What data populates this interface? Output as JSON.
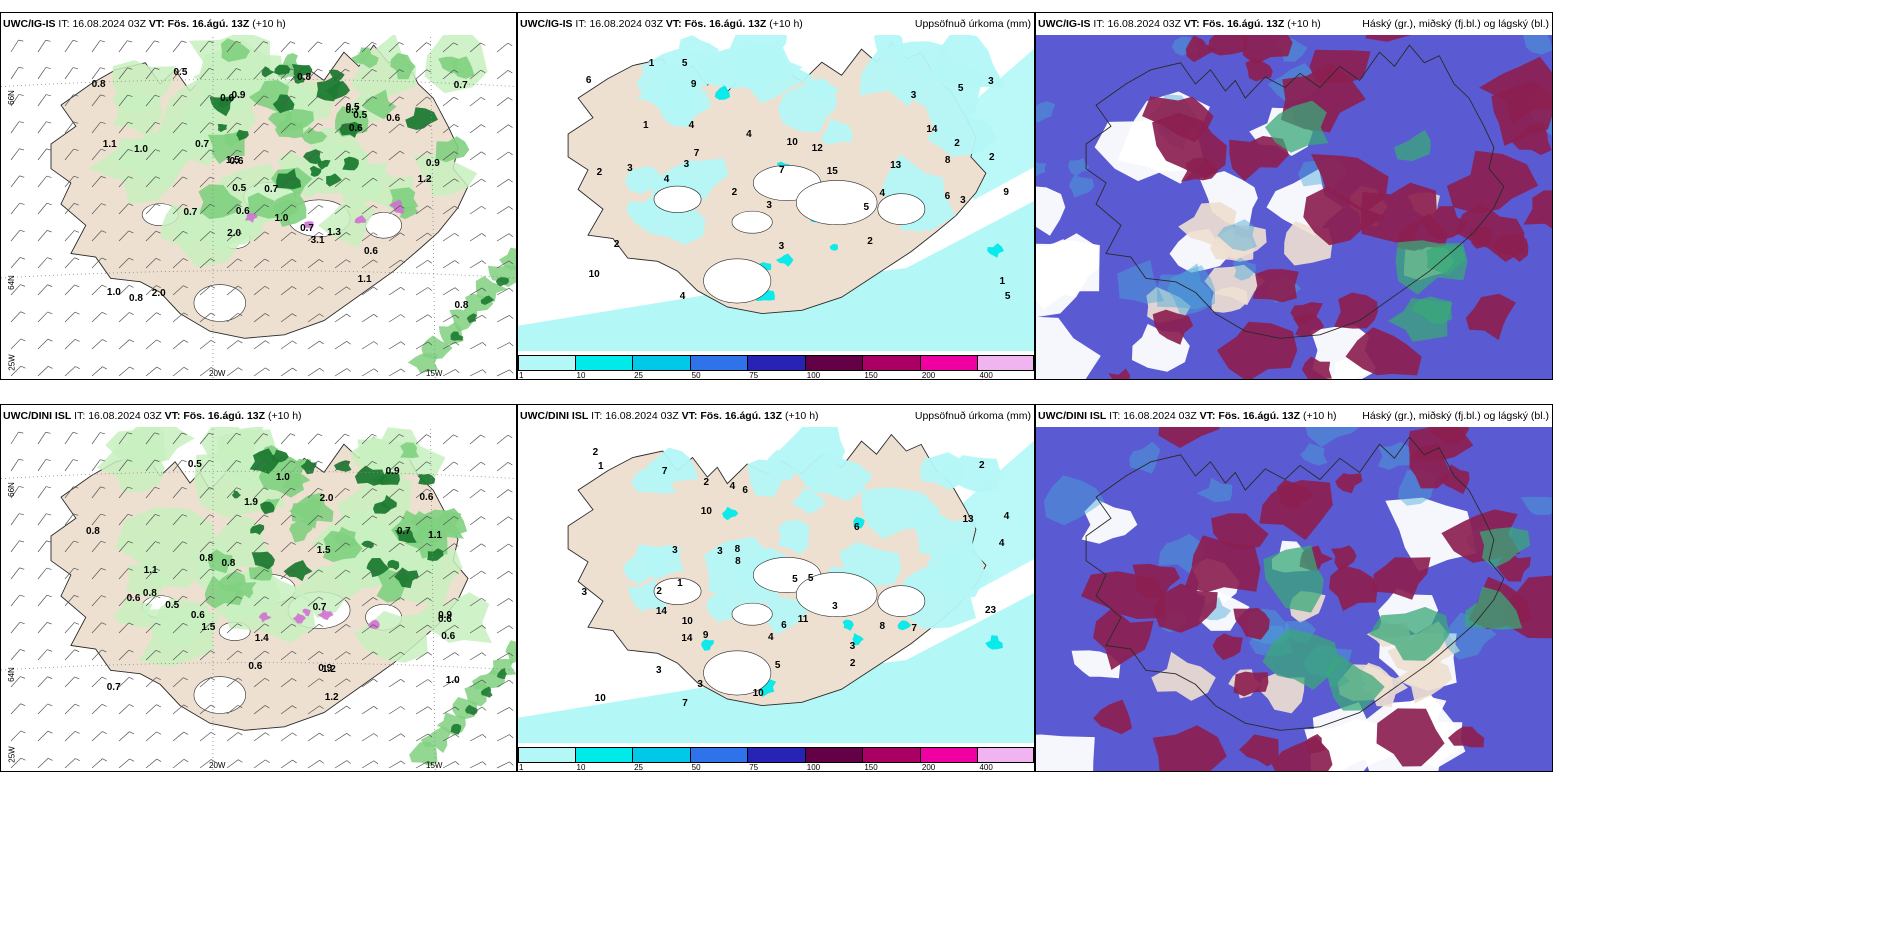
{
  "panels": [
    {
      "left_title": {
        "model": "UWC/IG-IS",
        "it_label": "IT:",
        "it": "16.08.2024 03Z",
        "vt_label": "VT:",
        "vt": "Fös. 16.ágú. 13Z",
        "lead": "(+10 h)"
      },
      "right_title": "",
      "kind": "wind",
      "labels": [
        "0.6",
        "0.7",
        "0.9",
        "0.5",
        "0.6",
        "0.7",
        "1.5",
        "0.6",
        "0.8",
        "1.0",
        "1.2",
        "0.9",
        "0.7",
        "1.1",
        "0.6",
        "0.8",
        "0.5",
        "1.1",
        "0.8",
        "1.0",
        "0.7",
        "0.8",
        "0.5",
        "0.6",
        "1.3",
        "0.7",
        "2.0",
        "0.5",
        "0.6",
        "3.1",
        "1.0",
        "2.0",
        "0.7"
      ],
      "axis": {
        "lat_top": "66N",
        "lat_bottom": "64N",
        "lon_left": "20W",
        "lon_right": "15W",
        "lon_far": "25W"
      }
    },
    {
      "left_title": {
        "model": "UWC/IG-IS",
        "it_label": "IT:",
        "it": "16.08.2024 03Z",
        "vt_label": "VT:",
        "vt": "Fös. 16.ágú. 13Z",
        "lead": "(+10 h)"
      },
      "right_title": "Uppsöfnuð úrkoma (mm)",
      "kind": "precip",
      "labels": [
        "2",
        "3",
        "3",
        "2",
        "4",
        "3",
        "4",
        "5",
        "1",
        "2",
        "7",
        "10",
        "15",
        "8",
        "14",
        "5",
        "9",
        "7",
        "5",
        "6",
        "3",
        "4",
        "3",
        "2",
        "1",
        "10",
        "4",
        "3",
        "2",
        "1",
        "13",
        "12",
        "9",
        "5",
        "3",
        "6",
        "2",
        "4"
      ],
      "colorbar": {
        "ticks": [
          "1",
          "10",
          "25",
          "50",
          "75",
          "100",
          "150",
          "200",
          "400"
        ],
        "colors": [
          "#b4f7f7",
          "#00eaea",
          "#00c8e6",
          "#2e73ea",
          "#2823b4",
          "#640046",
          "#aa0064",
          "#f000a0",
          "#f0b4f0"
        ]
      }
    },
    {
      "left_title": {
        "model": "UWC/IG-IS",
        "it_label": "IT:",
        "it": "16.08.2024 03Z",
        "vt_label": "VT:",
        "vt": "Fös. 16.ágú. 13Z",
        "lead": "(+10 h)"
      },
      "right_title": "Háský (gr.), miðský (fj.bl.) og lágský (bl.)",
      "kind": "cloud"
    },
    {
      "left_title": {
        "model": "UWC/DINI ISL",
        "it_label": "IT:",
        "it": "16.08.2024 03Z",
        "vt_label": "VT:",
        "vt": "Fös. 16.ágú. 13Z",
        "lead": "(+10 h)"
      },
      "right_title": "",
      "kind": "wind",
      "labels": [
        "1.2",
        "0.6",
        "0.9",
        "0.6",
        "1.1",
        "0.5",
        "0.7",
        "1.5",
        "0.8",
        "0.7",
        "0.6",
        "0.9",
        "1.2",
        "0.6",
        "0.8",
        "1.1",
        "1.0",
        "0.5",
        "0.9",
        "1.4",
        "0.6",
        "0.8",
        "2.0",
        "1.9",
        "0.7",
        "1.5",
        "0.8",
        "1.0",
        "0.6"
      ],
      "axis": {
        "lat_top": "66N",
        "lat_bottom": "64N",
        "lon_left": "20W",
        "lon_right": "15W",
        "lon_far": "25W"
      }
    },
    {
      "left_title": {
        "model": "UWC/DINI ISL",
        "it_label": "IT:",
        "it": "16.08.2024 03Z",
        "vt_label": "VT:",
        "vt": "Fös. 16.ágú. 13Z",
        "lead": "(+10 h)"
      },
      "right_title": "Uppsöfnuð úrkoma (mm)",
      "kind": "precip",
      "labels": [
        "1",
        "2",
        "3",
        "2",
        "4",
        "3",
        "6",
        "9",
        "10",
        "8",
        "14",
        "5",
        "7",
        "14",
        "6",
        "3",
        "4",
        "3",
        "10",
        "8",
        "4",
        "5",
        "3",
        "1",
        "2",
        "11",
        "10",
        "7",
        "10",
        "4",
        "3",
        "2",
        "13",
        "23",
        "5",
        "3",
        "7",
        "8",
        "2",
        "6"
      ],
      "colorbar": {
        "ticks": [
          "1",
          "10",
          "25",
          "50",
          "75",
          "100",
          "150",
          "200",
          "400"
        ],
        "colors": [
          "#b4f7f7",
          "#00eaea",
          "#00c8e6",
          "#2e73ea",
          "#2823b4",
          "#640046",
          "#aa0064",
          "#f000a0",
          "#f0b4f0"
        ]
      }
    },
    {
      "left_title": {
        "model": "UWC/DINI ISL",
        "it_label": "IT:",
        "it": "16.08.2024 03Z",
        "vt_label": "VT:",
        "vt": "Fös. 16.ágú. 13Z",
        "lead": "(+10 h)"
      },
      "right_title": "Háský (gr.), miðský (fj.bl.) og lágský (bl.)",
      "kind": "cloud"
    }
  ],
  "colors": {
    "land": "#eee0d0",
    "coast": "#2a2a2a",
    "sea": "#ffffff",
    "precip_light": "#b4f7f7",
    "precip_mid": "#00eaea",
    "green_light": "#c8f0c0",
    "green_mid": "#80d080",
    "green_dark": "#1e7a32",
    "purple": "#d070d0",
    "cloud_low": "#5a5ad2",
    "cloud_mid": "#4aa8d8",
    "cloud_high_dark": "#7a1a4a",
    "cloud_high": "#8c2050",
    "cloud_green": "#3aa878"
  }
}
